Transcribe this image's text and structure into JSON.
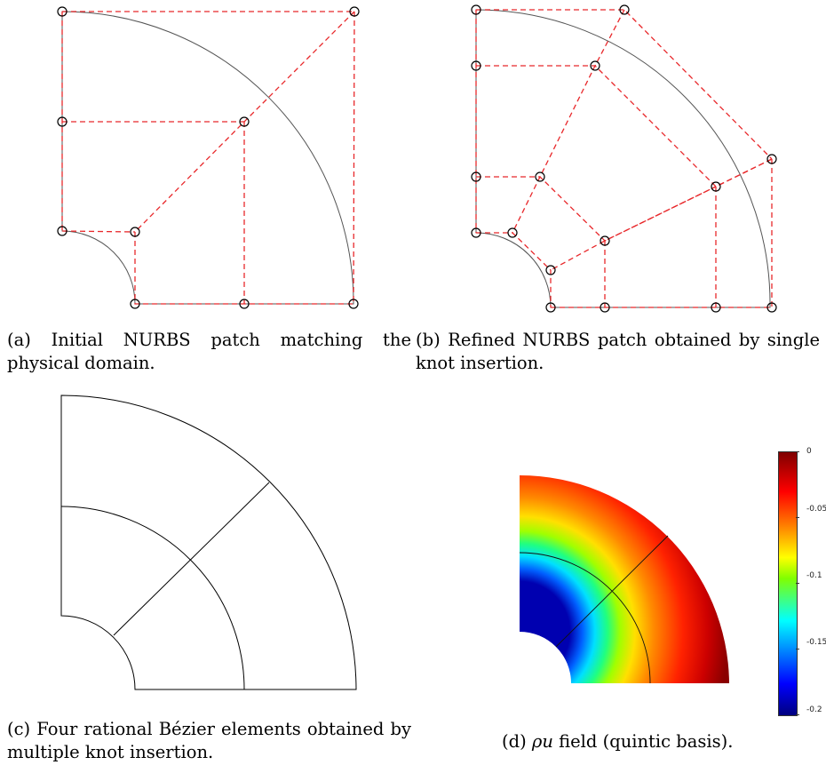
{
  "panels": [
    {
      "id": "a",
      "caption": "(a) Initial NURBS patch matching the physical domain."
    },
    {
      "id": "b",
      "caption": "(b) Refined NURBS patch obtained by single knot insertion."
    },
    {
      "id": "c",
      "caption": "(c) Four rational Bézier elements obtained by multiple knot insertion."
    },
    {
      "id": "d",
      "caption_prefix": "(d) ",
      "caption_symbol": "ρu",
      "caption_suffix": " field (quintic basis)."
    }
  ],
  "colorbar": {
    "ticks": [
      "0",
      "-0.05",
      "-0.1",
      "-0.15",
      "-0.2"
    ],
    "min": -0.2,
    "max": 0
  },
  "colors": {
    "control_polygon": "#e8282b",
    "geometry": "#555555",
    "mesh_lines": "#000000"
  },
  "icons": {
    "control_point": "circle-marker-icon"
  }
}
